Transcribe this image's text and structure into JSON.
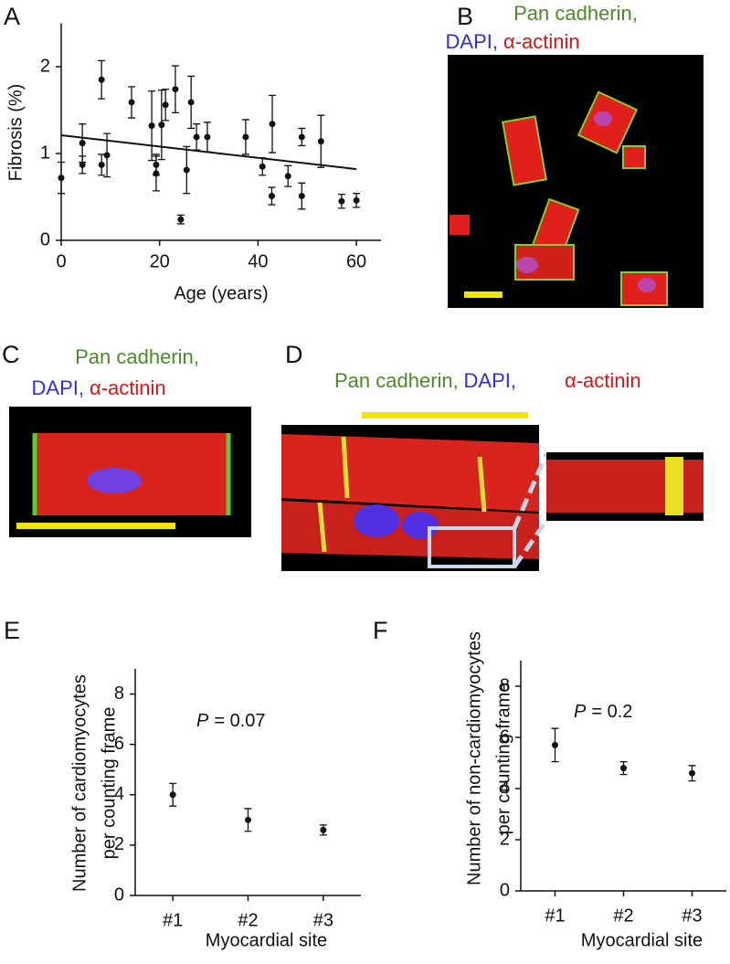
{
  "panel_labels": [
    "A",
    "B",
    "C",
    "D",
    "E",
    "F"
  ],
  "image_captions": {
    "B": [
      "Pan cadherin,",
      "DAPI,",
      "α-actinin"
    ],
    "C": [
      "Pan cadherin,",
      "DAPI,",
      "α-actinin"
    ],
    "D": [
      "Pan cadherin,",
      "DAPI,",
      "α-actinin"
    ]
  },
  "chart_data": [
    {
      "type": "errorbar",
      "xlabel": "Age (years)",
      "ylabel": [
        "Fibrosis (%)"
      ],
      "x": [
        0,
        4.3,
        4.3,
        8.2,
        8.2,
        9.3,
        14.3,
        18.4,
        19.3,
        19.3,
        20.4,
        21.2,
        23.2,
        24.3,
        25.5,
        26.4,
        27.5,
        29.7,
        37.5,
        40.9,
        42.9,
        42.8,
        46.1,
        48.9,
        48.9,
        52.8,
        57,
        60
      ],
      "values": [
        0.72,
        0.87,
        1.12,
        1.85,
        0.87,
        0.98,
        1.59,
        1.32,
        0.87,
        0.77,
        1.33,
        1.56,
        1.74,
        0.24,
        0.81,
        1.59,
        1.19,
        1.19,
        1.19,
        0.85,
        1.34,
        0.51,
        0.74,
        1.19,
        0.51,
        1.14,
        0.45,
        0.46
      ],
      "errors": [
        0.18,
        0.1,
        0.22,
        0.22,
        0.12,
        0.25,
        0.18,
        0.4,
        0.12,
        0.2,
        0.4,
        0.18,
        0.27,
        0.05,
        0.27,
        0.3,
        0.15,
        0.17,
        0.2,
        0.1,
        0.33,
        0.1,
        0.12,
        0.1,
        0.15,
        0.3,
        0.08,
        0.08
      ],
      "trend": {
        "x": [
          0,
          60
        ],
        "values": [
          1.21,
          0.82
        ]
      },
      "xlim": [
        0,
        65
      ],
      "ylim": [
        0,
        2.5
      ],
      "xticks": [
        0,
        20,
        40,
        60
      ],
      "yticks": [
        0,
        1,
        2
      ]
    },
    {
      "type": "errorbar",
      "xlabel": "Myocardial site",
      "ylabel": [
        "Number of cardiomyocytes",
        "per counting frame"
      ],
      "categories": [
        "#1",
        "#2",
        "#3"
      ],
      "values": [
        4.0,
        3.0,
        2.6
      ],
      "errors": [
        0.45,
        0.45,
        0.2
      ],
      "annotation_symbol": "P",
      "annotation": "= 0.07",
      "ylim": [
        0,
        9
      ],
      "yticks": [
        0,
        2,
        4,
        6,
        8
      ]
    },
    {
      "type": "errorbar",
      "xlabel": "Myocardial site",
      "ylabel": [
        "Number of non-cardiomyocytes",
        "per counting frame"
      ],
      "categories": [
        "#1",
        "#2",
        "#3"
      ],
      "values": [
        5.7,
        4.8,
        4.6
      ],
      "errors": [
        0.65,
        0.25,
        0.3
      ],
      "annotation_symbol": "P",
      "annotation": "= 0.2",
      "ylim": [
        0,
        9
      ],
      "yticks": [
        0,
        2,
        4,
        6,
        8
      ]
    }
  ]
}
